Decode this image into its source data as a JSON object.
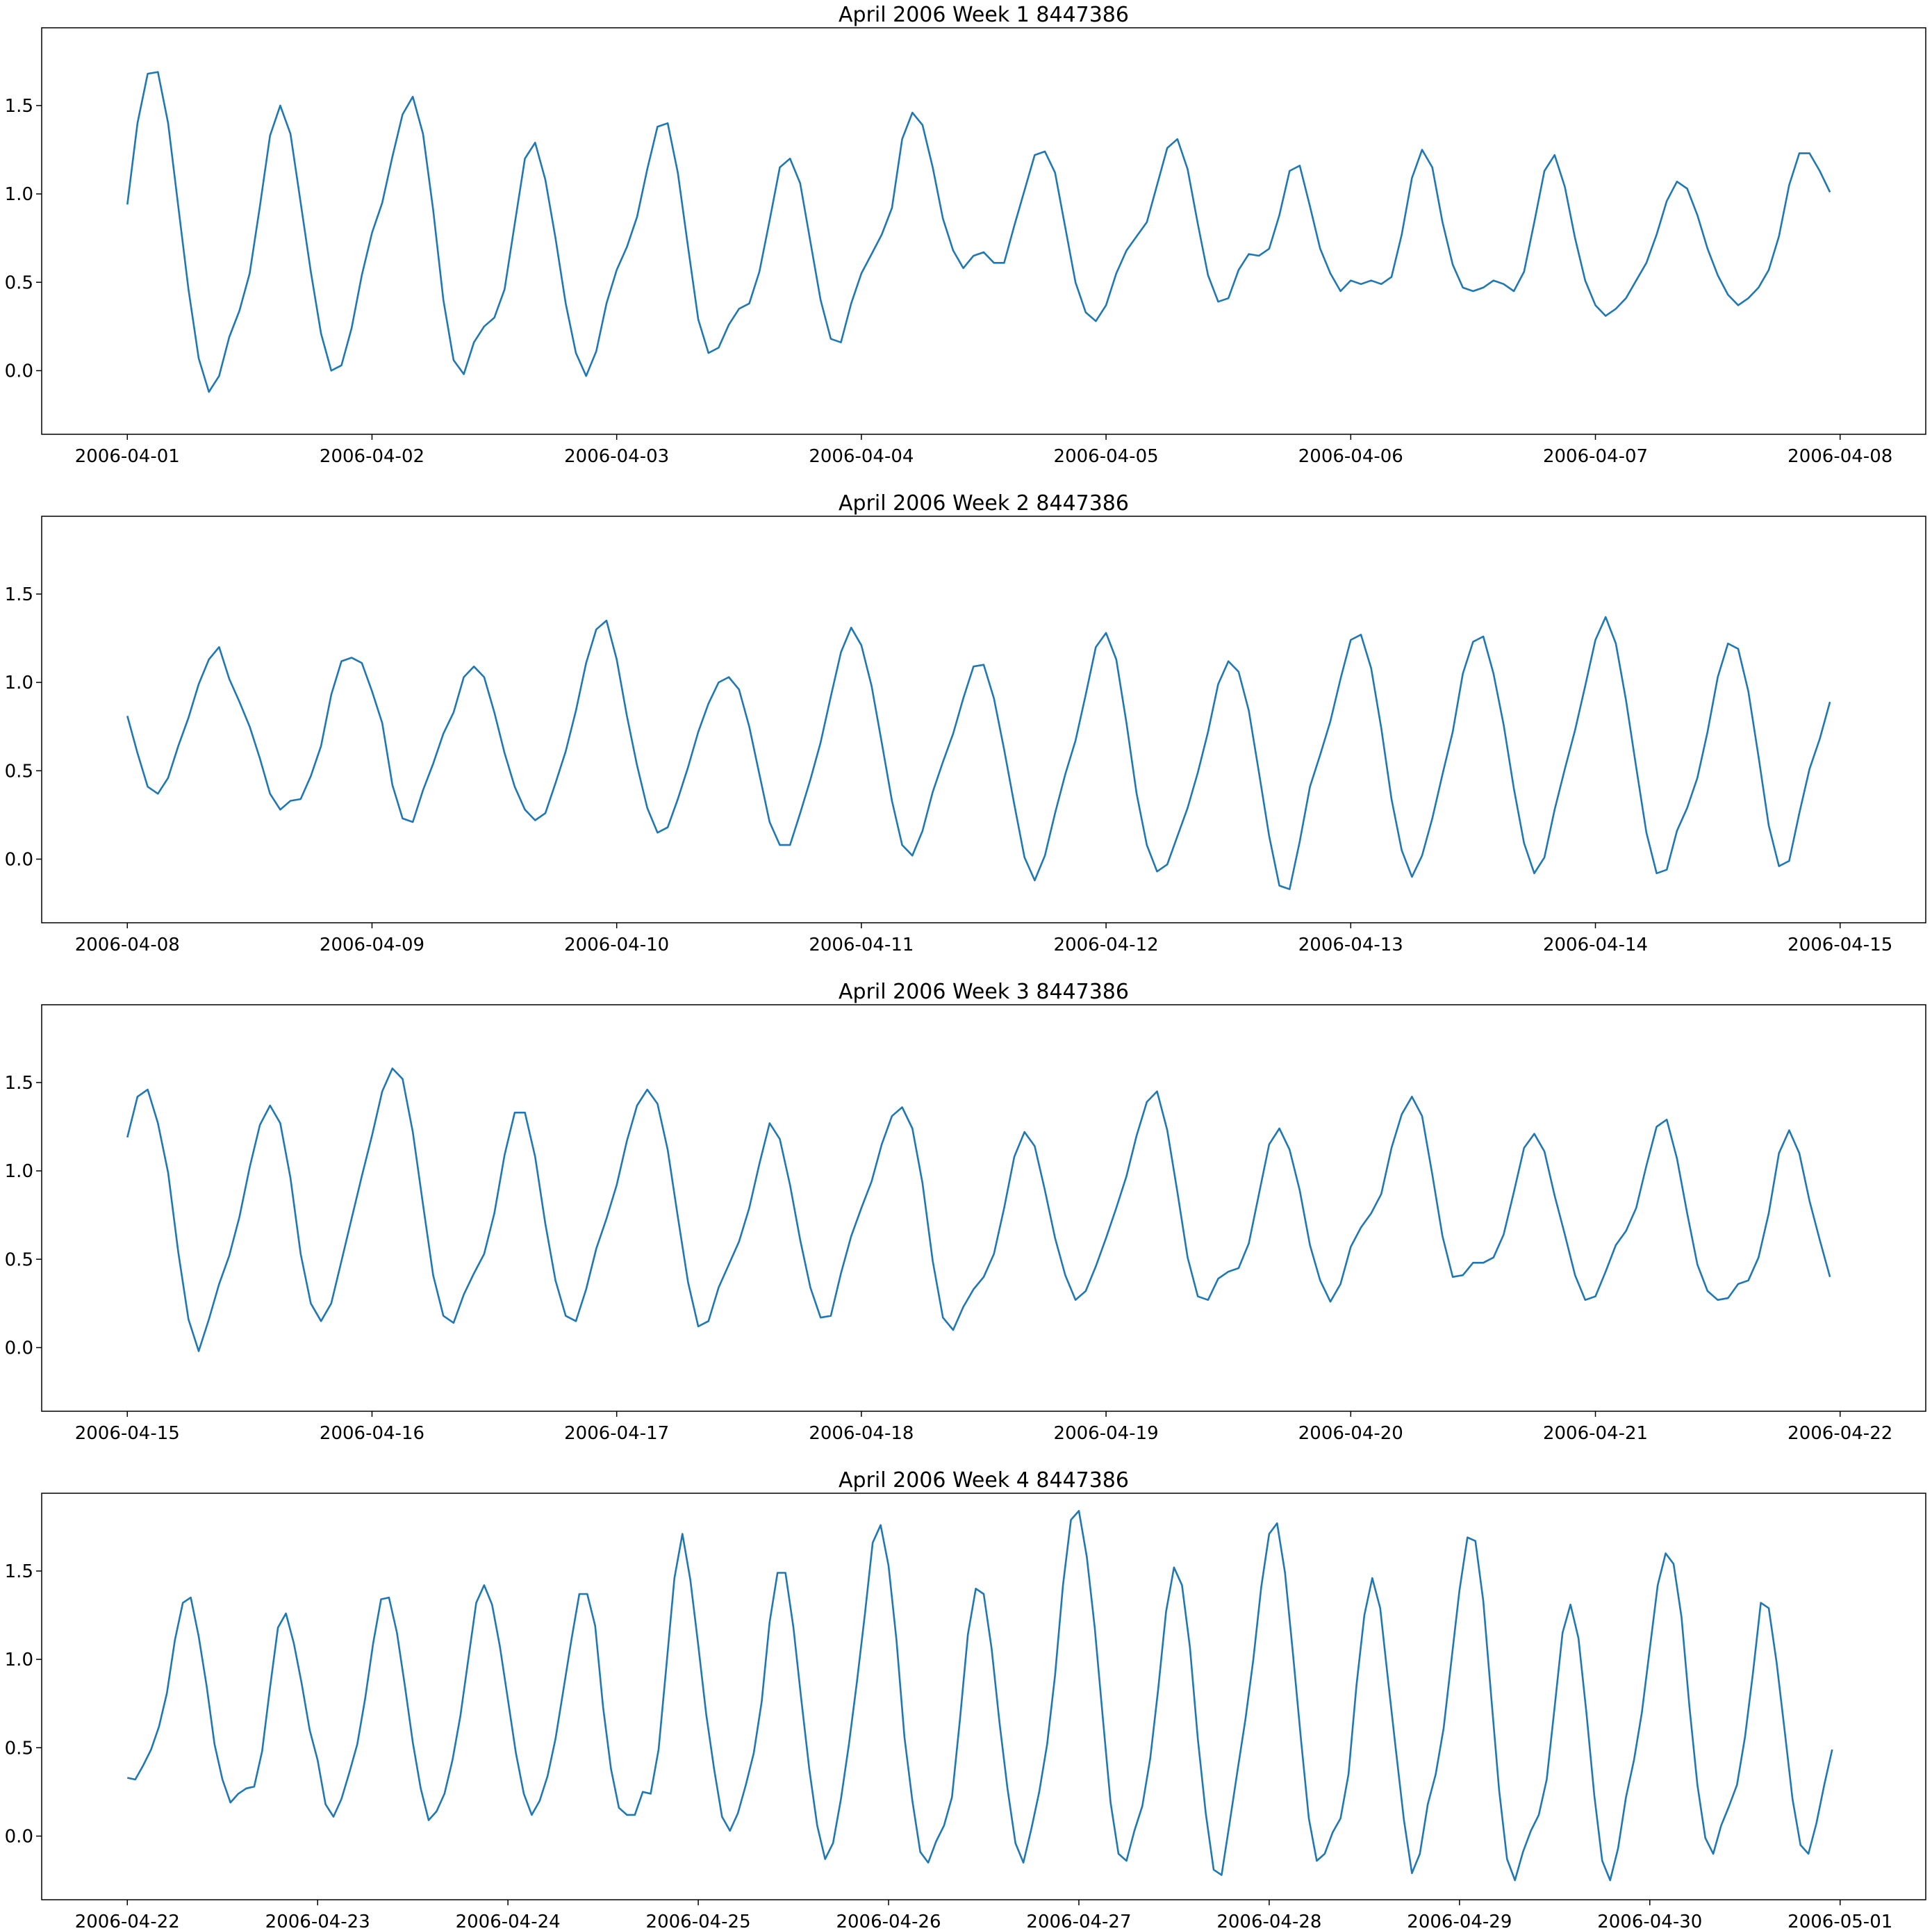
{
  "chart_data": [
    {
      "type": "line",
      "title": "April 2006 Week 1 8447386",
      "xlabel": "",
      "ylabel": "",
      "x_start": "2006-04-01",
      "x_step_hours": 1,
      "xlim": [
        "2006-04-01",
        "2006-04-08"
      ],
      "x_ticks": [
        "2006-04-01",
        "2006-04-02",
        "2006-04-03",
        "2006-04-04",
        "2006-04-05",
        "2006-04-06",
        "2006-04-07",
        "2006-04-08"
      ],
      "ylim": [
        -0.36,
        1.94
      ],
      "y_ticks": [
        "0.0",
        "0.5",
        "1.0",
        "1.5"
      ],
      "grid": false,
      "color": "#1f77b4",
      "values": [
        0.94,
        1.4,
        1.68,
        1.69,
        1.4,
        0.93,
        0.46,
        0.07,
        -0.12,
        -0.03,
        0.19,
        0.34,
        0.55,
        0.93,
        1.33,
        1.5,
        1.34,
        0.95,
        0.56,
        0.21,
        0.0,
        0.03,
        0.24,
        0.54,
        0.78,
        0.95,
        1.21,
        1.45,
        1.55,
        1.34,
        0.91,
        0.4,
        0.06,
        -0.02,
        0.16,
        0.25,
        0.3,
        0.46,
        0.83,
        1.2,
        1.29,
        1.08,
        0.75,
        0.38,
        0.1,
        -0.03,
        0.11,
        0.38,
        0.57,
        0.7,
        0.87,
        1.14,
        1.38,
        1.4,
        1.12,
        0.7,
        0.29,
        0.1,
        0.13,
        0.26,
        0.35,
        0.38,
        0.56,
        0.85,
        1.15,
        1.2,
        1.06,
        0.73,
        0.4,
        0.18,
        0.16,
        0.38,
        0.55,
        0.66,
        0.77,
        0.92,
        1.31,
        1.46,
        1.39,
        1.15,
        0.86,
        0.68,
        0.58,
        0.65,
        0.67,
        0.61,
        0.61,
        0.82,
        1.02,
        1.22,
        1.24,
        1.12,
        0.81,
        0.5,
        0.33,
        0.28,
        0.37,
        0.55,
        0.68,
        0.76,
        0.84,
        1.05,
        1.26,
        1.31,
        1.14,
        0.83,
        0.54,
        0.39,
        0.41,
        0.57,
        0.66,
        0.65,
        0.69,
        0.88,
        1.13,
        1.16,
        0.93,
        0.69,
        0.55,
        0.45,
        0.51,
        0.49,
        0.51,
        0.49,
        0.53,
        0.77,
        1.09,
        1.25,
        1.15,
        0.84,
        0.6,
        0.47,
        0.45,
        0.47,
        0.51,
        0.49,
        0.45,
        0.56,
        0.84,
        1.13,
        1.22,
        1.04,
        0.75,
        0.51,
        0.37,
        0.31,
        0.35,
        0.41,
        0.51,
        0.61,
        0.77,
        0.96,
        1.07,
        1.03,
        0.88,
        0.69,
        0.54,
        0.43,
        0.37,
        0.41,
        0.47,
        0.57,
        0.76,
        1.05,
        1.23,
        1.23,
        1.13,
        1.01
      ]
    },
    {
      "type": "line",
      "title": "April 2006 Week 2 8447386",
      "xlabel": "",
      "ylabel": "",
      "x_start": "2006-04-08",
      "x_step_hours": 1,
      "xlim": [
        "2006-04-08",
        "2006-04-15"
      ],
      "x_ticks": [
        "2006-04-08",
        "2006-04-09",
        "2006-04-10",
        "2006-04-11",
        "2006-04-12",
        "2006-04-13",
        "2006-04-14",
        "2006-04-15"
      ],
      "ylim": [
        -0.36,
        1.94
      ],
      "y_ticks": [
        "0.0",
        "0.5",
        "1.0",
        "1.5"
      ],
      "grid": false,
      "color": "#1f77b4",
      "values": [
        0.81,
        0.6,
        0.41,
        0.37,
        0.46,
        0.64,
        0.8,
        0.99,
        1.13,
        1.2,
        1.02,
        0.89,
        0.75,
        0.57,
        0.37,
        0.28,
        0.33,
        0.34,
        0.47,
        0.64,
        0.93,
        1.12,
        1.14,
        1.11,
        0.95,
        0.77,
        0.42,
        0.23,
        0.21,
        0.39,
        0.54,
        0.71,
        0.83,
        1.03,
        1.09,
        1.03,
        0.83,
        0.6,
        0.41,
        0.28,
        0.22,
        0.26,
        0.43,
        0.61,
        0.84,
        1.11,
        1.3,
        1.35,
        1.13,
        0.81,
        0.53,
        0.29,
        0.15,
        0.18,
        0.34,
        0.52,
        0.72,
        0.88,
        1.0,
        1.03,
        0.96,
        0.75,
        0.48,
        0.21,
        0.08,
        0.08,
        0.26,
        0.45,
        0.66,
        0.92,
        1.17,
        1.31,
        1.21,
        0.98,
        0.66,
        0.33,
        0.08,
        0.02,
        0.16,
        0.38,
        0.55,
        0.71,
        0.91,
        1.09,
        1.1,
        0.91,
        0.62,
        0.31,
        0.01,
        -0.12,
        0.02,
        0.26,
        0.48,
        0.67,
        0.93,
        1.2,
        1.28,
        1.13,
        0.77,
        0.37,
        0.08,
        -0.07,
        -0.03,
        0.13,
        0.29,
        0.49,
        0.72,
        0.99,
        1.12,
        1.06,
        0.84,
        0.49,
        0.13,
        -0.15,
        -0.17,
        0.1,
        0.41,
        0.59,
        0.78,
        1.02,
        1.24,
        1.27,
        1.08,
        0.74,
        0.34,
        0.05,
        -0.1,
        0.02,
        0.23,
        0.48,
        0.72,
        1.05,
        1.23,
        1.26,
        1.05,
        0.76,
        0.4,
        0.09,
        -0.08,
        0.01,
        0.28,
        0.51,
        0.73,
        0.98,
        1.24,
        1.37,
        1.22,
        0.9,
        0.52,
        0.15,
        -0.08,
        -0.06,
        0.16,
        0.29,
        0.46,
        0.72,
        1.03,
        1.22,
        1.19,
        0.95,
        0.58,
        0.19,
        -0.04,
        -0.01,
        0.26,
        0.51,
        0.68,
        0.89
      ]
    },
    {
      "type": "line",
      "title": "April 2006 Week 3 8447386",
      "xlabel": "",
      "ylabel": "",
      "x_start": "2006-04-15",
      "x_step_hours": 1,
      "xlim": [
        "2006-04-15",
        "2006-04-22"
      ],
      "x_ticks": [
        "2006-04-15",
        "2006-04-16",
        "2006-04-17",
        "2006-04-18",
        "2006-04-19",
        "2006-04-20",
        "2006-04-21",
        "2006-04-22"
      ],
      "ylim": [
        -0.36,
        1.94
      ],
      "y_ticks": [
        "0.0",
        "0.5",
        "1.0",
        "1.5"
      ],
      "grid": false,
      "color": "#1f77b4",
      "values": [
        1.19,
        1.42,
        1.46,
        1.27,
        0.99,
        0.54,
        0.16,
        -0.02,
        0.16,
        0.36,
        0.52,
        0.74,
        1.02,
        1.26,
        1.37,
        1.27,
        0.96,
        0.53,
        0.25,
        0.15,
        0.25,
        0.49,
        0.73,
        0.97,
        1.2,
        1.45,
        1.58,
        1.52,
        1.22,
        0.81,
        0.41,
        0.18,
        0.14,
        0.3,
        0.42,
        0.53,
        0.76,
        1.09,
        1.33,
        1.33,
        1.08,
        0.7,
        0.38,
        0.18,
        0.15,
        0.33,
        0.56,
        0.73,
        0.92,
        1.17,
        1.37,
        1.46,
        1.38,
        1.12,
        0.74,
        0.37,
        0.12,
        0.15,
        0.34,
        0.47,
        0.6,
        0.79,
        1.04,
        1.27,
        1.18,
        0.92,
        0.61,
        0.34,
        0.17,
        0.18,
        0.42,
        0.63,
        0.79,
        0.94,
        1.15,
        1.31,
        1.36,
        1.24,
        0.93,
        0.49,
        0.17,
        0.1,
        0.23,
        0.33,
        0.4,
        0.53,
        0.79,
        1.08,
        1.22,
        1.14,
        0.89,
        0.62,
        0.41,
        0.27,
        0.32,
        0.46,
        0.62,
        0.79,
        0.97,
        1.2,
        1.39,
        1.45,
        1.23,
        0.88,
        0.51,
        0.29,
        0.27,
        0.39,
        0.43,
        0.45,
        0.59,
        0.87,
        1.15,
        1.24,
        1.12,
        0.89,
        0.58,
        0.38,
        0.26,
        0.36,
        0.57,
        0.68,
        0.76,
        0.87,
        1.13,
        1.32,
        1.42,
        1.31,
        0.98,
        0.63,
        0.4,
        0.41,
        0.48,
        0.48,
        0.51,
        0.64,
        0.88,
        1.13,
        1.21,
        1.11,
        0.86,
        0.64,
        0.41,
        0.27,
        0.29,
        0.43,
        0.58,
        0.66,
        0.79,
        1.03,
        1.25,
        1.29,
        1.07,
        0.76,
        0.47,
        0.32,
        0.27,
        0.28,
        0.36,
        0.38,
        0.51,
        0.76,
        1.1,
        1.23,
        1.1,
        0.83,
        0.61,
        0.4
      ]
    },
    {
      "type": "line",
      "title": "April 2006 Week 4 8447386",
      "xlabel": "",
      "ylabel": "",
      "x_start": "2006-04-22",
      "x_step_hours": 1,
      "xlim": [
        "2006-04-22",
        "2006-05-01"
      ],
      "x_ticks": [
        "2006-04-22",
        "2006-04-23",
        "2006-04-24",
        "2006-04-25",
        "2006-04-26",
        "2006-04-27",
        "2006-04-28",
        "2006-04-29",
        "2006-04-30",
        "2006-05-01"
      ],
      "ylim": [
        -0.36,
        1.94
      ],
      "y_ticks": [
        "0.0",
        "0.5",
        "1.0",
        "1.5"
      ],
      "grid": false,
      "color": "#1f77b4",
      "values": [
        0.33,
        0.32,
        0.4,
        0.49,
        0.62,
        0.81,
        1.11,
        1.32,
        1.35,
        1.13,
        0.85,
        0.52,
        0.32,
        0.19,
        0.24,
        0.27,
        0.28,
        0.48,
        0.84,
        1.18,
        1.26,
        1.09,
        0.86,
        0.6,
        0.43,
        0.18,
        0.11,
        0.21,
        0.36,
        0.52,
        0.78,
        1.09,
        1.34,
        1.35,
        1.15,
        0.85,
        0.53,
        0.27,
        0.09,
        0.14,
        0.24,
        0.43,
        0.68,
        1.0,
        1.32,
        1.42,
        1.31,
        1.07,
        0.77,
        0.47,
        0.24,
        0.12,
        0.2,
        0.34,
        0.55,
        0.83,
        1.11,
        1.37,
        1.37,
        1.19,
        0.73,
        0.38,
        0.16,
        0.12,
        0.12,
        0.25,
        0.24,
        0.49,
        0.97,
        1.46,
        1.71,
        1.45,
        1.08,
        0.69,
        0.38,
        0.11,
        0.03,
        0.13,
        0.29,
        0.47,
        0.76,
        1.21,
        1.49,
        1.49,
        1.18,
        0.77,
        0.38,
        0.06,
        -0.13,
        -0.04,
        0.21,
        0.52,
        0.87,
        1.25,
        1.66,
        1.76,
        1.53,
        1.11,
        0.56,
        0.2,
        -0.09,
        -0.15,
        -0.03,
        0.06,
        0.22,
        0.66,
        1.14,
        1.4,
        1.37,
        1.06,
        0.64,
        0.27,
        -0.04,
        -0.15,
        0.04,
        0.25,
        0.52,
        0.91,
        1.42,
        1.79,
        1.84,
        1.58,
        1.18,
        0.68,
        0.19,
        -0.1,
        -0.14,
        0.03,
        0.17,
        0.44,
        0.83,
        1.27,
        1.52,
        1.42,
        1.07,
        0.55,
        0.13,
        -0.19,
        -0.22,
        0.07,
        0.37,
        0.66,
        1.0,
        1.41,
        1.71,
        1.77,
        1.49,
        1.03,
        0.55,
        0.1,
        -0.14,
        -0.1,
        0.02,
        0.1,
        0.35,
        0.85,
        1.25,
        1.46,
        1.29,
        0.88,
        0.48,
        0.09,
        -0.21,
        -0.1,
        0.18,
        0.35,
        0.61,
        1.0,
        1.39,
        1.69,
        1.67,
        1.33,
        0.79,
        0.26,
        -0.13,
        -0.25,
        -0.09,
        0.03,
        0.12,
        0.32,
        0.73,
        1.15,
        1.31,
        1.12,
        0.7,
        0.23,
        -0.14,
        -0.25,
        -0.07,
        0.22,
        0.43,
        0.7,
        1.06,
        1.42,
        1.6,
        1.54,
        1.24,
        0.73,
        0.29,
        -0.01,
        -0.1,
        0.06,
        0.17,
        0.29,
        0.56,
        0.92,
        1.32,
        1.29,
        0.98,
        0.6,
        0.21,
        -0.05,
        -0.1,
        0.07,
        0.29,
        0.49
      ]
    }
  ]
}
